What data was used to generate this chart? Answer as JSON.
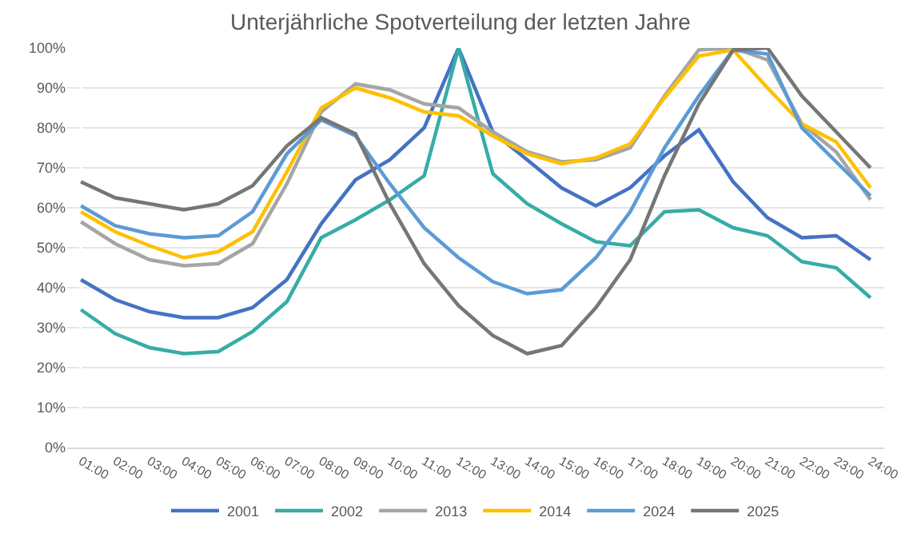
{
  "chart_data": {
    "type": "line",
    "title": "Unterjährliche Spotverteilung der letzten Jahre",
    "categories": [
      "01:00",
      "02:00",
      "03:00",
      "04:00",
      "05:00",
      "06:00",
      "07:00",
      "08:00",
      "09:00",
      "10:00",
      "11:00",
      "12:00",
      "13:00",
      "14:00",
      "15:00",
      "16:00",
      "17:00",
      "18:00",
      "19:00",
      "20:00",
      "21:00",
      "22:00",
      "23:00",
      "24:00"
    ],
    "series": [
      {
        "name": "2001",
        "color": "#4472c4",
        "values": [
          42,
          37,
          34,
          32.5,
          32.5,
          35,
          42,
          56,
          67,
          72,
          80,
          100,
          79,
          72,
          65,
          60.5,
          65,
          73,
          79.5,
          66.5,
          57.5,
          52.5,
          53,
          47
        ]
      },
      {
        "name": "2002",
        "color": "#36aca8",
        "values": [
          34.5,
          28.5,
          25,
          23.5,
          24,
          29,
          36.5,
          52.5,
          57,
          62,
          68,
          100,
          68.5,
          61,
          56,
          51.5,
          50.5,
          59,
          59.5,
          55,
          53,
          46.5,
          45,
          37.5
        ]
      },
      {
        "name": "2013",
        "color": "#a5a5a5",
        "values": [
          56.5,
          51,
          47,
          45.5,
          46,
          51,
          66,
          84,
          91,
          89.5,
          86,
          85,
          79,
          74,
          71.5,
          72,
          75,
          88,
          99.5,
          100,
          97,
          81,
          74,
          62
        ]
      },
      {
        "name": "2014",
        "color": "#ffc000",
        "values": [
          59,
          54,
          50.5,
          47.5,
          49,
          54,
          69,
          85,
          90,
          87.5,
          84,
          83,
          78,
          73.5,
          71,
          72.5,
          76,
          87.5,
          98,
          99.5,
          90,
          81,
          76.5,
          65
        ]
      },
      {
        "name": "2024",
        "color": "#5b9bd5",
        "values": [
          60.5,
          55.5,
          53.5,
          52.5,
          53,
          59,
          73.5,
          82,
          78,
          66,
          55,
          47.5,
          41.5,
          38.5,
          39.5,
          47.5,
          59,
          75,
          88,
          99.5,
          98.5,
          80,
          71.5,
          63
        ]
      },
      {
        "name": "2025",
        "color": "#767676",
        "values": [
          66.5,
          62.5,
          61,
          59.5,
          61,
          65.5,
          75.5,
          82.5,
          78.5,
          61,
          46,
          35.5,
          28,
          23.5,
          25.5,
          35,
          47,
          68,
          86,
          99.5,
          100,
          88,
          79,
          70
        ]
      }
    ],
    "ylim": [
      0,
      100
    ],
    "yticks": [
      {
        "value": 0,
        "label": "0%"
      },
      {
        "value": 10,
        "label": "10%"
      },
      {
        "value": 20,
        "label": "20%"
      },
      {
        "value": 30,
        "label": "30%"
      },
      {
        "value": 40,
        "label": "40%"
      },
      {
        "value": 50,
        "label": "50%"
      },
      {
        "value": 60,
        "label": "60%"
      },
      {
        "value": 70,
        "label": "70%"
      },
      {
        "value": 80,
        "label": "80%"
      },
      {
        "value": 90,
        "label": "90%"
      },
      {
        "value": 100,
        "label": "100%"
      }
    ],
    "grid": "y",
    "legend": "bottom",
    "marker": "none",
    "line_style": "solid"
  }
}
